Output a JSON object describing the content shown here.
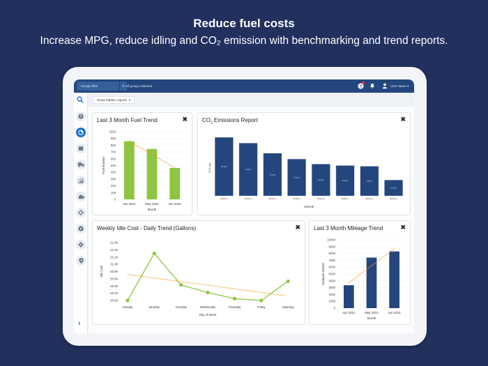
{
  "hero": {
    "title": "Reduce fuel costs",
    "subtitle": "Increase MPG, reduce idling and CO₂ emission with benchmarking and trend reports."
  },
  "topbar": {
    "groups_filter_label": "Groups filter",
    "groups_selected": "All groups selected",
    "user_name": "User Name ▾",
    "icons": [
      "help-notification-icon",
      "bell-icon",
      "user-icon"
    ]
  },
  "toolbar": {
    "show_hidden_reports": "Show hidden reports",
    "dropdown_arrow": "▾"
  },
  "sidebar": {
    "items": [
      {
        "icon": "search-icon",
        "glyph": "⚲"
      },
      {
        "icon": "help-icon",
        "glyph": "?"
      },
      {
        "icon": "reports-icon",
        "glyph": "◔",
        "active": true
      },
      {
        "icon": "map-icon",
        "glyph": "⛶"
      },
      {
        "icon": "truck-icon",
        "glyph": "⛟"
      },
      {
        "icon": "chart-icon",
        "glyph": "▟"
      },
      {
        "icon": "engine-icon",
        "glyph": "▬"
      },
      {
        "icon": "network-icon",
        "glyph": "✲"
      },
      {
        "icon": "compass-icon",
        "glyph": "⊘"
      },
      {
        "icon": "settings-icon",
        "glyph": "⚙"
      },
      {
        "icon": "location-icon",
        "glyph": "⚲"
      }
    ],
    "expand_glyph": "›"
  },
  "colors": {
    "background": "#22305e",
    "topbar": "#24467e",
    "accent_blue": "#1b6fd1",
    "bar_green": "#8dc63f",
    "bar_navy": "#24467e",
    "trend_orange": "#f5961e"
  },
  "cards": {
    "fuel": {
      "title": "Last 3 Month Fuel Trend",
      "close": "✖"
    },
    "co2": {
      "title_main": "CO",
      "title_sub": "2",
      "title_rest": " Emissions Report",
      "close": "✖"
    },
    "idle": {
      "title": "Weekly Idle Cost - Daily Trend (Gallons)",
      "close": "✖"
    },
    "mileage": {
      "title": "Last 3 Month Mileage Trend",
      "close": "✖"
    }
  },
  "chart_data": [
    {
      "type": "bar",
      "title": "Last 3 Month Fuel Trend",
      "categories": [
        "Apr 2021",
        "May 2021",
        "Jun 2021"
      ],
      "values": [
        860,
        745,
        465
      ],
      "trendline": [
        860,
        665,
        470
      ],
      "xlabel": "Month",
      "ylabel": "Fuel Burned",
      "ylim": [
        0,
        1000
      ],
      "yticks": [
        "0",
        "100",
        "200",
        "300",
        "400",
        "500",
        "600",
        "700",
        "800",
        "900",
        "1000"
      ],
      "grid": true
    },
    {
      "type": "bar",
      "title": "CO2 Emissions Report",
      "categories": [
        "Vehicle 5",
        "Vehicle 6",
        "Vehicle 3",
        "Vehicle 2",
        "Vehicle 8",
        "Vehicle 7",
        "Vehicle 1",
        "Vehicle 4"
      ],
      "values": [
        81,
        73,
        59,
        51,
        44,
        42,
        41,
        22
      ],
      "value_labels": [
        "0.1xxxx",
        "0.1xxxx",
        "0.1xxxx",
        "0.1xxxx",
        "0.1xxxx",
        "0.1xxxx",
        "0.1xxxx",
        "0.1xxxx"
      ],
      "xlabel": "Vehicle",
      "ylabel": "CO2 (kg)",
      "grid": false
    },
    {
      "type": "line",
      "title": "Weekly Idle Cost - Daily Trend (Gallons)",
      "categories": [
        "Sunday",
        "Monday",
        "Tuesday",
        "Wednesday",
        "Thursday",
        "Friday",
        "Saturday"
      ],
      "values": [
        0.0,
        1.3,
        0.43,
        0.22,
        0.05,
        0.0,
        0.53
      ],
      "trendline": [
        0.72,
        0.13
      ],
      "xlabel": "Day of Week",
      "ylabel": "Idle Cost",
      "ylim": [
        0,
        1.6
      ],
      "yticks": [
        "£0.00",
        "£0.20",
        "£0.40",
        "£0.60",
        "£0.80",
        "£1.00",
        "£1.20",
        "£1.40",
        "£1.60"
      ]
    },
    {
      "type": "bar",
      "title": "Last 3 Month Mileage Trend",
      "categories": [
        "Apr 2021",
        "May 2021",
        "Jun 2021"
      ],
      "values": [
        3350,
        7400,
        8300
      ],
      "trendline": [
        3700,
        8700
      ],
      "xlabel": "Month",
      "ylabel": "Distance Driven",
      "ylim": [
        0,
        10000
      ],
      "yticks": [
        "0",
        "1000",
        "2000",
        "3000",
        "4000",
        "5000",
        "6000",
        "7000",
        "8000",
        "9000",
        "10000"
      ],
      "grid": true
    }
  ]
}
